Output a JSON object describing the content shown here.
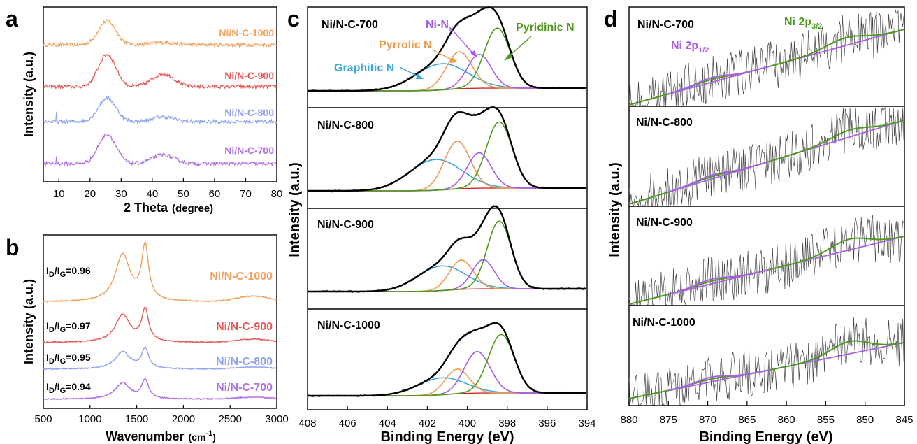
{
  "colors": {
    "c700": "#B070E8",
    "c800": "#8FA3F0",
    "c900": "#E35A58",
    "c1000": "#EFA35E",
    "pyridinic": "#4E9A1E",
    "nix": "#A55BEA",
    "pyrrolic": "#EE9A4C",
    "graphitic": "#3BA8E0",
    "bg": "#D22727",
    "envelope": "#000000",
    "raw": "#444444",
    "ni_bg": "#A860E6",
    "ni_fit": "#4E9A1E"
  },
  "chart_data": [
    {
      "panel": "a",
      "type": "line",
      "xlabel": "2 Theta",
      "xlabel_unit": "(degree)",
      "ylabel": "Intensity (a.u.)",
      "xlim": [
        5,
        80
      ],
      "xticks": [
        10,
        20,
        30,
        40,
        50,
        60,
        70,
        80
      ],
      "series": [
        {
          "name": "Ni/N-C-1000",
          "color_key": "c1000",
          "offset": 3.0,
          "peak2_h": 0.04,
          "spike": false
        },
        {
          "name": "Ni/N-C-900",
          "color_key": "c900",
          "offset": 2.0,
          "peak2_h": 0.16,
          "spike": false
        },
        {
          "name": "Ni/N-C-800",
          "color_key": "c800",
          "offset": 1.0,
          "peak2_h": 0.08,
          "spike": true
        },
        {
          "name": "Ni/N-C-700",
          "color_key": "c700",
          "offset": 0.0,
          "peak2_h": 0.12,
          "spike": true
        }
      ]
    },
    {
      "panel": "b",
      "type": "line",
      "xlabel": "Wavenumber",
      "xlabel_unit": "(cm-1)",
      "ylabel": "Intensity (a.u.)",
      "xlim": [
        500,
        3000
      ],
      "xticks": [
        500,
        1000,
        1500,
        2000,
        2500,
        3000
      ],
      "series": [
        {
          "name": "Ni/N-C-1000",
          "ratio": "0.96",
          "color_key": "c1000",
          "base": 0.0,
          "scale": 1.0
        },
        {
          "name": "Ni/N-C-900",
          "ratio": "0.97",
          "color_key": "c900",
          "base": 0.0,
          "scale": 0.55
        },
        {
          "name": "Ni/N-C-800",
          "ratio": "0.95",
          "color_key": "c800",
          "base": 0.0,
          "scale": 0.38
        },
        {
          "name": "Ni/N-C-700",
          "ratio": "0.94",
          "color_key": "c700",
          "base": 0.0,
          "scale": 0.38
        }
      ]
    },
    {
      "panel": "c",
      "type": "line",
      "xlabel": "Binding Energy (eV)",
      "ylabel": "Intensity (a.u.)",
      "xlim": [
        408,
        394
      ],
      "xticks": [
        408,
        406,
        404,
        402,
        400,
        398,
        396,
        394
      ],
      "components": [
        "Graphitic N",
        "Pyrrolic N",
        "Ni-Nx",
        "Pyridinic N"
      ],
      "subplots": [
        {
          "name": "Ni/N-C-700",
          "peaks": [
            {
              "label": "Graphitic N",
              "center": 401.3,
              "height": 0.34,
              "width": 1.3
            },
            {
              "label": "Pyrrolic N",
              "center": 400.4,
              "height": 0.48,
              "width": 0.65
            },
            {
              "label": "Ni-Nx",
              "center": 399.4,
              "height": 0.44,
              "width": 0.6
            },
            {
              "label": "Pyridinic N",
              "center": 398.5,
              "height": 0.78,
              "width": 0.65
            }
          ]
        },
        {
          "name": "Ni/N-C-800",
          "peaks": [
            {
              "label": "Graphitic N",
              "center": 401.6,
              "height": 0.4,
              "width": 1.3
            },
            {
              "label": "Pyrrolic N",
              "center": 400.5,
              "height": 0.62,
              "width": 0.65
            },
            {
              "label": "Ni-Nx",
              "center": 399.4,
              "height": 0.46,
              "width": 0.6
            },
            {
              "label": "Pyridinic N",
              "center": 398.4,
              "height": 0.86,
              "width": 0.65
            }
          ]
        },
        {
          "name": "Ni/N-C-900",
          "peaks": [
            {
              "label": "Graphitic N",
              "center": 401.3,
              "height": 0.32,
              "width": 1.2
            },
            {
              "label": "Pyrrolic N",
              "center": 400.3,
              "height": 0.38,
              "width": 0.6
            },
            {
              "label": "Ni-Nx",
              "center": 399.2,
              "height": 0.38,
              "width": 0.55
            },
            {
              "label": "Pyridinic N",
              "center": 398.4,
              "height": 0.88,
              "width": 0.6
            }
          ]
        },
        {
          "name": "Ni/N-C-1000",
          "peaks": [
            {
              "label": "Graphitic N",
              "center": 401.3,
              "height": 0.22,
              "width": 1.2
            },
            {
              "label": "Pyrrolic N",
              "center": 400.5,
              "height": 0.32,
              "width": 0.6
            },
            {
              "label": "Ni-Nx",
              "center": 399.5,
              "height": 0.54,
              "width": 0.65
            },
            {
              "label": "Pyridinic N",
              "center": 398.3,
              "height": 0.76,
              "width": 0.65
            }
          ]
        }
      ]
    },
    {
      "panel": "d",
      "type": "line",
      "xlabel": "Binding Energy (eV)",
      "ylabel": "Intensity (a.u.)",
      "xlim": [
        880,
        845
      ],
      "xticks": [
        880,
        875,
        870,
        865,
        860,
        855,
        850,
        845
      ],
      "peak_labels": [
        {
          "main": "Ni 2p",
          "sub": "3/2"
        },
        {
          "main": "Ni 2p",
          "sub": "1/2"
        }
      ],
      "subplots": [
        {
          "name": "Ni/N-C-700",
          "p32_center": 852.5,
          "p32_height": 0.1,
          "p12_center": 869.5,
          "p12_height": 0.06
        },
        {
          "name": "Ni/N-C-800",
          "p32_center": 852.0,
          "p32_height": 0.09,
          "p12_center": 869.5,
          "p12_height": 0.05
        },
        {
          "name": "Ni/N-C-900",
          "p32_center": 852.0,
          "p32_height": 0.14,
          "p12_center": 869.5,
          "p12_height": 0.06
        },
        {
          "name": "Ni/N-C-1000",
          "p32_center": 852.0,
          "p32_height": 0.16,
          "p12_center": 869.5,
          "p12_height": 0.06
        }
      ]
    }
  ],
  "labels": {
    "a": {
      "panel": "a",
      "s1000": "Ni/N-C-1000",
      "s900": "Ni/N-C-900",
      "s800": "Ni/N-C-800",
      "s700": "Ni/N-C-700",
      "xlabel_main": "2 Theta",
      "xlabel_unit": "(degree)",
      "ylabel": "Intensity (a.u.)"
    },
    "b": {
      "panel": "b",
      "s1000": "Ni/N-C-1000",
      "s900": "Ni/N-C-900",
      "s800": "Ni/N-C-800",
      "s700": "Ni/N-C-700",
      "ratio_prefix_I": "I",
      "ratio_D": "D",
      "ratio_slash": "/I",
      "ratio_G": "G",
      "r1000": "=0.96",
      "r900": "=0.97",
      "r800": "=0.95",
      "r700": "=0.94",
      "xlabel_main": "Wavenumber",
      "xlabel_unit": "(cm",
      "xlabel_exp": "-1",
      "xlabel_close": ")",
      "ylabel": "Intensity (a.u.)"
    },
    "c": {
      "panel": "c",
      "s700": "Ni/N-C-700",
      "s800": "Ni/N-C-800",
      "s900": "Ni/N-C-900",
      "s1000": "Ni/N-C-1000",
      "graphitic": "Graphitic N",
      "pyrrolic": "Pyrrolic N",
      "nix_main": "Ni-N",
      "nix_sub": "x",
      "pyridinic": "Pyridinic N",
      "xlabel": "Binding Energy (eV)",
      "ylabel": "Intensity (a.u.)"
    },
    "d": {
      "panel": "d",
      "s700": "Ni/N-C-700",
      "s800": "Ni/N-C-800",
      "s900": "Ni/N-C-900",
      "s1000": "Ni/N-C-1000",
      "p32_main": "Ni 2p",
      "p32_sub": "3/2",
      "p12_main": "Ni 2p",
      "p12_sub": "1/2",
      "xlabel": "Binding Energy (eV)",
      "ylabel": "Intensity (a.u.)"
    }
  }
}
